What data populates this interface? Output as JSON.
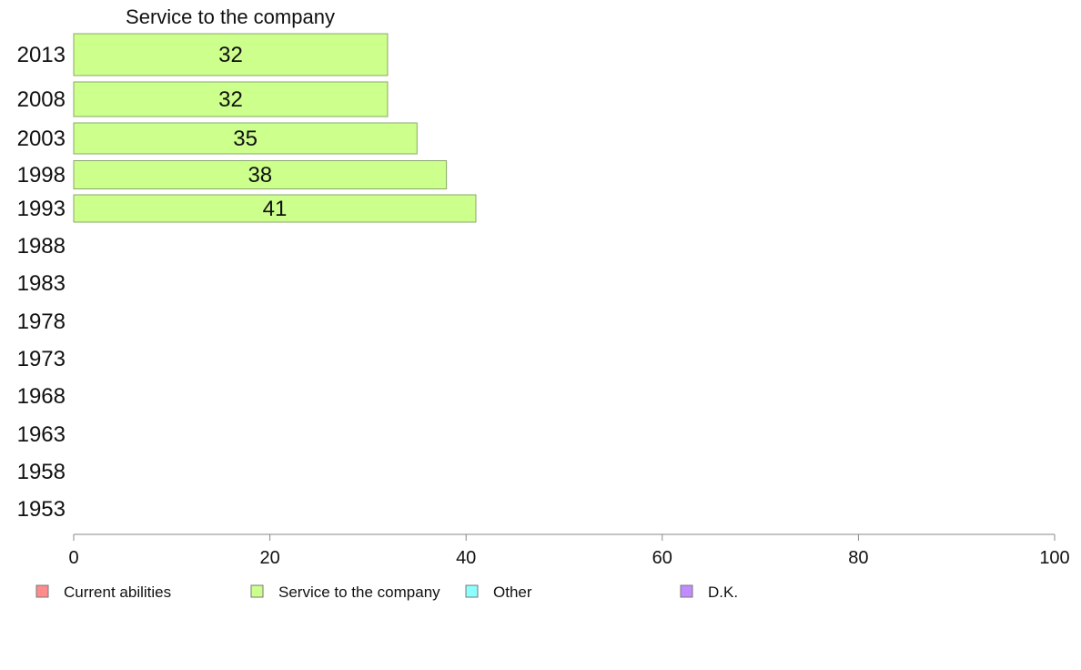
{
  "chart_data": {
    "type": "bar",
    "orientation": "horizontal",
    "title": "Service to the company",
    "categories": [
      "2013",
      "2008",
      "2003",
      "1998",
      "1993",
      "1988",
      "1983",
      "1978",
      "1973",
      "1968",
      "1963",
      "1958",
      "1953"
    ],
    "series": [
      {
        "name": "Current abilities",
        "color": "#ff8c8c",
        "values": [
          null,
          null,
          null,
          null,
          null,
          null,
          null,
          null,
          null,
          null,
          null,
          null,
          null
        ]
      },
      {
        "name": "Service to the company",
        "color": "#ccff8c",
        "values": [
          32,
          32,
          35,
          38,
          41,
          null,
          null,
          null,
          null,
          null,
          null,
          null,
          null
        ],
        "value_labels": [
          "32",
          "32",
          "35",
          "38",
          "41"
        ]
      },
      {
        "name": "Other",
        "color": "#8cffff",
        "values": [
          null,
          null,
          null,
          null,
          null,
          null,
          null,
          null,
          null,
          null,
          null,
          null,
          null
        ]
      },
      {
        "name": "D.K.",
        "color": "#c08cff",
        "values": [
          null,
          null,
          null,
          null,
          null,
          null,
          null,
          null,
          null,
          null,
          null,
          null,
          null
        ]
      }
    ],
    "xlim": [
      0,
      100
    ],
    "xticks": [
      "0",
      "20",
      "40",
      "60",
      "80",
      "100"
    ],
    "grid": false,
    "legend_position": "bottom"
  }
}
